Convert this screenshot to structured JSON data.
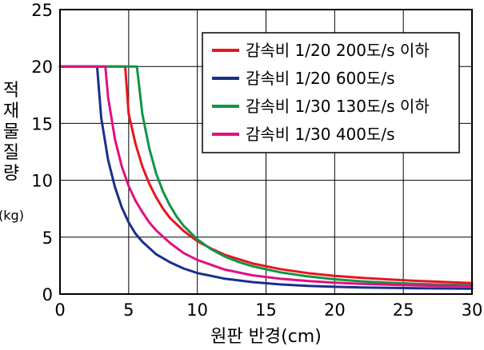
{
  "chart_data": {
    "type": "line",
    "xlabel": "원판 반경(cm)",
    "ylabel_chars": [
      "적",
      "재",
      "물",
      "질",
      "량"
    ],
    "ylabel_unit": "(kg)",
    "xlim": [
      0,
      30
    ],
    "ylim": [
      0,
      25
    ],
    "xticks": [
      0,
      5,
      10,
      15,
      20,
      25,
      30
    ],
    "yticks": [
      0,
      5,
      10,
      15,
      20,
      25
    ],
    "grid": true,
    "legend_position": "top-right",
    "series": [
      {
        "name": "감속비 1/20  200도/s 이하",
        "color": "#e8141e",
        "x": [
          0,
          4.75,
          5,
          5.5,
          6,
          6.5,
          7,
          7.5,
          8,
          9,
          10,
          11,
          12,
          14,
          16,
          18,
          20,
          22,
          24,
          26,
          28,
          30
        ],
        "y": [
          20,
          20,
          15.85,
          13.2,
          11.2,
          9.7,
          8.5,
          7.5,
          6.7,
          5.55,
          4.65,
          4.0,
          3.45,
          2.7,
          2.2,
          1.85,
          1.6,
          1.42,
          1.28,
          1.16,
          1.06,
          0.97
        ]
      },
      {
        "name": "감속비 1/20  600도/s",
        "color": "#1a2f8c",
        "x": [
          0,
          2.7,
          3,
          3.5,
          4,
          4.5,
          5,
          5.5,
          6,
          7,
          8,
          9,
          10,
          12,
          14,
          16,
          18,
          20,
          22,
          24,
          26,
          28,
          30
        ],
        "y": [
          20,
          20,
          15.5,
          11.8,
          9.4,
          7.6,
          6.3,
          5.3,
          4.6,
          3.5,
          2.8,
          2.25,
          1.85,
          1.35,
          1.05,
          0.85,
          0.72,
          0.64,
          0.58,
          0.54,
          0.51,
          0.49,
          0.47
        ]
      },
      {
        "name": "감속비 1/30  130도/s 이하",
        "color": "#119448",
        "x": [
          0,
          5.6,
          6,
          6.5,
          7,
          7.5,
          8,
          8.5,
          9,
          10,
          11,
          12,
          13,
          14,
          16,
          18,
          20,
          22,
          24,
          26,
          28,
          30
        ],
        "y": [
          20,
          20,
          15.8,
          12.8,
          10.6,
          9.0,
          7.8,
          6.8,
          6.0,
          4.8,
          3.95,
          3.3,
          2.82,
          2.45,
          1.92,
          1.56,
          1.3,
          1.12,
          0.99,
          0.9,
          0.83,
          0.78
        ]
      },
      {
        "name": "감속비 1/30  400도/s",
        "color": "#e0117f",
        "x": [
          0,
          3.3,
          3.5,
          4,
          4.5,
          5,
          5.5,
          6,
          6.5,
          7,
          8,
          9,
          10,
          12,
          14,
          16,
          18,
          20,
          22,
          24,
          26,
          28,
          30
        ],
        "y": [
          20,
          20,
          17.3,
          13.6,
          11.2,
          9.5,
          8.2,
          7.2,
          6.3,
          5.6,
          4.5,
          3.6,
          3.0,
          2.15,
          1.65,
          1.35,
          1.15,
          1.0,
          0.9,
          0.82,
          0.76,
          0.72,
          0.7
        ]
      }
    ]
  }
}
